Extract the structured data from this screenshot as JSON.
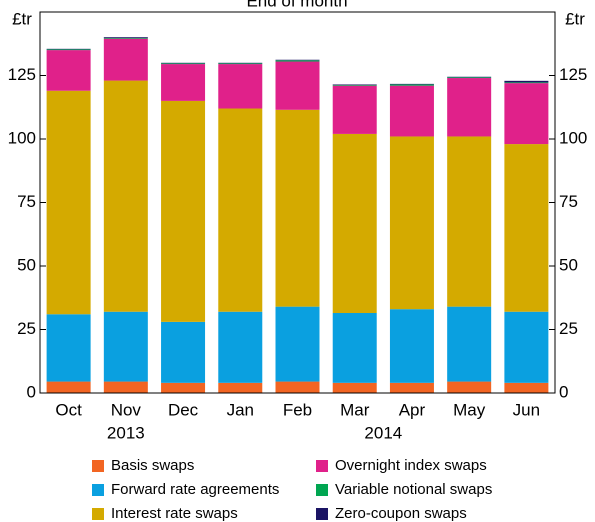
{
  "chart_data": {
    "type": "bar",
    "stacked": true,
    "title": "End of month",
    "ylabel": "£tr",
    "y2label": "£tr",
    "categories": [
      "Oct",
      "Nov",
      "Dec",
      "Jan",
      "Feb",
      "Mar",
      "Apr",
      "May",
      "Jun"
    ],
    "year_labels": [
      {
        "label": "2013",
        "category": 1
      },
      {
        "label": "2014",
        "category": 5.5
      }
    ],
    "ylim": [
      0,
      150
    ],
    "yticks": [
      0,
      25,
      50,
      75,
      100,
      125
    ],
    "series": [
      {
        "name": "Basis swaps",
        "color": "#f26522",
        "values": [
          4.5,
          4.5,
          4,
          4,
          4.5,
          4,
          4,
          4.5,
          4
        ]
      },
      {
        "name": "Forward rate agreements",
        "color": "#0aa0e0",
        "values": [
          26.5,
          27.5,
          24,
          28,
          29.5,
          27.5,
          29,
          29.5,
          28
        ]
      },
      {
        "name": "Interest rate swaps",
        "color": "#d4aa00",
        "values": [
          88,
          91,
          87,
          80,
          77.5,
          70.5,
          68,
          67,
          66
        ]
      },
      {
        "name": "Overnight index swaps",
        "color": "#e0218a",
        "values": [
          16,
          16.5,
          14.5,
          17.5,
          19,
          19,
          20,
          23,
          24
        ]
      },
      {
        "name": "Variable notional swaps",
        "color": "#00a651",
        "values": [
          0.3,
          0.3,
          0.3,
          0.3,
          0.5,
          0.3,
          0.5,
          0.3,
          0.3
        ]
      },
      {
        "name": "Zero-coupon swaps",
        "color": "#1b1464",
        "values": [
          0.2,
          0.3,
          0.2,
          0.2,
          0.2,
          0.2,
          0.2,
          0.2,
          0.6
        ]
      }
    ]
  }
}
